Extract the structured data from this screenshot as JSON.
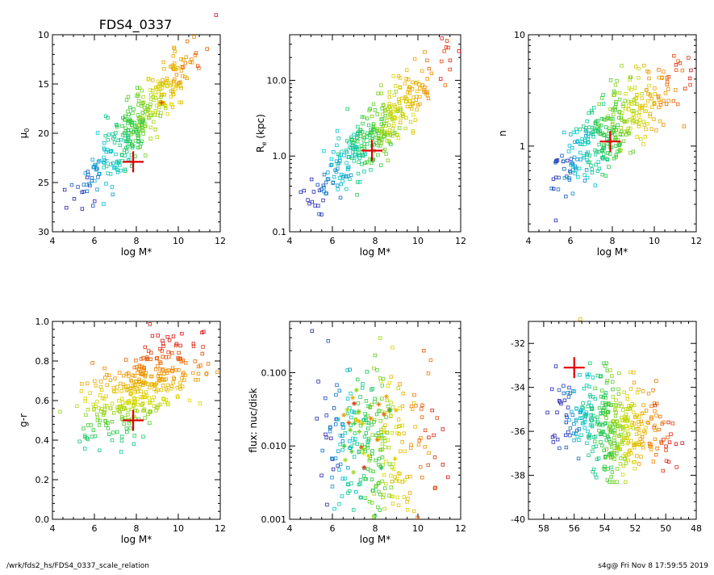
{
  "title": "FDS4_0337",
  "footer": {
    "left": "/wrk/fds2_hs/FDS4_0337_scale_relation",
    "right": "s4g@  Fri Nov  8 17:59:55 2019"
  },
  "chart_data": [
    {
      "id": "mu0",
      "type": "scatter",
      "xlabel": "log M*",
      "ylabel": "μ",
      "ylabel_sub": "0",
      "xlim": [
        4,
        12
      ],
      "ylim": [
        30,
        10
      ],
      "yscale": "linear",
      "xticks": [
        4,
        6,
        8,
        10,
        12
      ],
      "xtick_labels": [
        "4",
        "6",
        "8",
        "10",
        "12"
      ],
      "yticks": [
        10,
        15,
        20,
        25,
        30
      ],
      "ytick_labels": [
        "10",
        "15",
        "20",
        "25",
        "30"
      ],
      "cloud": {
        "n": 360,
        "x": [
          5.2,
          11.6
        ],
        "y": [
          26.5,
          9.5
        ],
        "scatter": 1.3,
        "outlier_y": [
          8.0
        ],
        "outlier_x": [
          11.8
        ]
      },
      "marker": {
        "x": 7.85,
        "y": 22.9
      },
      "extra_stars": [
        {
          "x": 9.2,
          "y": 16.9
        }
      ]
    },
    {
      "id": "re",
      "type": "scatter",
      "xlabel": "log M*",
      "ylabel": "R",
      "ylabel_sub": "e",
      "ylabel_suffix": " (kpc)",
      "xlim": [
        4,
        12
      ],
      "ylim": [
        0.1,
        40
      ],
      "yscale": "log",
      "xticks": [
        4,
        6,
        8,
        10,
        12
      ],
      "xtick_labels": [
        "4",
        "6",
        "8",
        "10",
        "12"
      ],
      "yticks": [
        0.1,
        1.0,
        10.0
      ],
      "ytick_labels": [
        "0.1",
        "1.0",
        "10.0"
      ],
      "cloud": {
        "n": 360,
        "x": [
          5.2,
          11.6
        ],
        "y": [
          0.28,
          25
        ],
        "scatter": 0.2
      },
      "marker": {
        "x": 7.85,
        "y": 1.18
      }
    },
    {
      "id": "n",
      "type": "scatter",
      "xlabel": "log M*",
      "ylabel": "n",
      "xlim": [
        4,
        12
      ],
      "ylim": [
        0.17,
        10
      ],
      "yscale": "log",
      "xticks": [
        4,
        6,
        8,
        10,
        12
      ],
      "xtick_labels": [
        "4",
        "6",
        "8",
        "10",
        "12"
      ],
      "yticks": [
        1,
        10
      ],
      "ytick_labels": [
        "1",
        "10"
      ],
      "cloud": {
        "n": 360,
        "x": [
          5.2,
          11.6
        ],
        "y": [
          0.55,
          5
        ],
        "scatter": 0.16
      },
      "marker": {
        "x": 7.9,
        "y": 1.1
      }
    },
    {
      "id": "gr",
      "type": "scatter",
      "xlabel": "log M*",
      "ylabel": "g-r",
      "xlim": [
        4,
        12
      ],
      "ylim": [
        0.0,
        1.0
      ],
      "yscale": "linear",
      "xticks": [
        4,
        6,
        8,
        10,
        12
      ],
      "xtick_labels": [
        "4",
        "6",
        "8",
        "10",
        "12"
      ],
      "yticks": [
        0.0,
        0.2,
        0.4,
        0.6,
        0.8,
        1.0
      ],
      "ytick_labels": [
        "0.0",
        "0.2",
        "0.4",
        "0.6",
        "0.8",
        "1.0"
      ],
      "cloud": {
        "n": 360,
        "x": [
          5.2,
          11.6
        ],
        "y": [
          0.48,
          0.85
        ],
        "scatter": 0.09
      },
      "marker": {
        "x": 7.85,
        "y": 0.5
      }
    },
    {
      "id": "flux",
      "type": "scatter",
      "xlabel": "log M*",
      "ylabel": "flux: nuc/disk",
      "xlim": [
        4,
        12
      ],
      "ylim": [
        0.001,
        0.5
      ],
      "yscale": "log",
      "xticks": [
        4,
        6,
        8,
        10,
        12
      ],
      "xtick_labels": [
        "4",
        "6",
        "8",
        "10",
        "12"
      ],
      "yticks": [
        0.001,
        0.01,
        0.1
      ],
      "ytick_labels": [
        "0.001",
        "0.010",
        "0.100"
      ],
      "cloud": {
        "n": 300,
        "x": [
          5.6,
          11.0
        ],
        "y": [
          0.012,
          0.01
        ],
        "scatter": 0.5
      },
      "stars": 35
    },
    {
      "id": "mag",
      "type": "scatter",
      "xlabel": "",
      "ylabel": "",
      "xlim": [
        59,
        48
      ],
      "ylim": [
        -40,
        -31
      ],
      "yscale": "linear",
      "xticks": [
        58,
        56,
        54,
        52,
        50,
        48
      ],
      "xtick_labels": [
        "58",
        "56",
        "54",
        "52",
        "50",
        "48"
      ],
      "yticks": [
        -40,
        -38,
        -36,
        -34,
        -32
      ],
      "ytick_labels": [
        "-40",
        "-38",
        "-36",
        "-34",
        "-32"
      ],
      "cloud": {
        "n": 420,
        "x": [
          57,
          49.5
        ],
        "y": [
          -35.2,
          -36.4
        ],
        "scatter": 1.1,
        "ylim_clip": [
          -38.3,
          -32.9
        ]
      },
      "marker": {
        "x": 56.0,
        "y": -33.1
      },
      "extra_points": [
        {
          "x": 55.6,
          "y": -30.9
        }
      ]
    }
  ]
}
